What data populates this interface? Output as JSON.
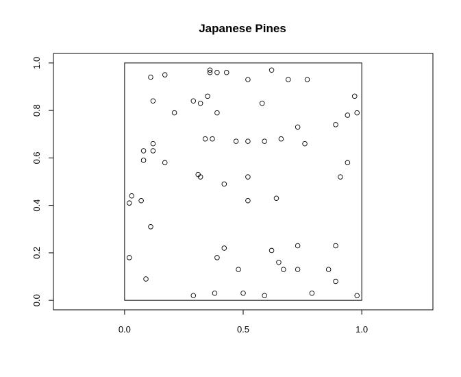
{
  "chart_data": {
    "type": "scatter",
    "title": "Japanese Pines",
    "xlabel": "",
    "ylabel": "",
    "xlim": [
      -0.3,
      1.3
    ],
    "ylim": [
      -0.04,
      1.04
    ],
    "observation_window": {
      "x": [
        0,
        1
      ],
      "y": [
        0,
        1
      ]
    },
    "x_ticks": [
      {
        "value": 0.0,
        "label": "0.0"
      },
      {
        "value": 0.5,
        "label": "0.5"
      },
      {
        "value": 1.0,
        "label": "1.0"
      }
    ],
    "y_ticks": [
      {
        "value": 0.0,
        "label": "0.0"
      },
      {
        "value": 0.2,
        "label": "0.2"
      },
      {
        "value": 0.4,
        "label": "0.4"
      },
      {
        "value": 0.6,
        "label": "0.6"
      },
      {
        "value": 0.8,
        "label": "0.8"
      },
      {
        "value": 1.0,
        "label": "1.0"
      }
    ],
    "grid": false,
    "marker": "open-circle",
    "points": [
      [
        0.09,
        0.09
      ],
      [
        0.29,
        0.02
      ],
      [
        0.38,
        0.03
      ],
      [
        0.5,
        0.03
      ],
      [
        0.59,
        0.02
      ],
      [
        0.79,
        0.03
      ],
      [
        0.98,
        0.02
      ],
      [
        0.02,
        0.18
      ],
      [
        0.39,
        0.18
      ],
      [
        0.42,
        0.22
      ],
      [
        0.48,
        0.13
      ],
      [
        0.62,
        0.21
      ],
      [
        0.65,
        0.16
      ],
      [
        0.67,
        0.13
      ],
      [
        0.73,
        0.13
      ],
      [
        0.73,
        0.23
      ],
      [
        0.86,
        0.13
      ],
      [
        0.89,
        0.08
      ],
      [
        0.89,
        0.23
      ],
      [
        0.11,
        0.31
      ],
      [
        0.02,
        0.41
      ],
      [
        0.03,
        0.44
      ],
      [
        0.07,
        0.42
      ],
      [
        0.31,
        0.53
      ],
      [
        0.32,
        0.52
      ],
      [
        0.42,
        0.49
      ],
      [
        0.52,
        0.42
      ],
      [
        0.52,
        0.52
      ],
      [
        0.64,
        0.43
      ],
      [
        0.91,
        0.52
      ],
      [
        0.08,
        0.59
      ],
      [
        0.08,
        0.63
      ],
      [
        0.12,
        0.63
      ],
      [
        0.12,
        0.66
      ],
      [
        0.17,
        0.58
      ],
      [
        0.34,
        0.68
      ],
      [
        0.37,
        0.68
      ],
      [
        0.47,
        0.67
      ],
      [
        0.52,
        0.67
      ],
      [
        0.59,
        0.67
      ],
      [
        0.66,
        0.68
      ],
      [
        0.73,
        0.73
      ],
      [
        0.76,
        0.66
      ],
      [
        0.89,
        0.74
      ],
      [
        0.94,
        0.58
      ],
      [
        0.12,
        0.84
      ],
      [
        0.21,
        0.79
      ],
      [
        0.29,
        0.84
      ],
      [
        0.32,
        0.83
      ],
      [
        0.35,
        0.86
      ],
      [
        0.39,
        0.79
      ],
      [
        0.58,
        0.83
      ],
      [
        0.94,
        0.78
      ],
      [
        0.97,
        0.86
      ],
      [
        0.98,
        0.79
      ],
      [
        0.11,
        0.94
      ],
      [
        0.17,
        0.95
      ],
      [
        0.36,
        0.96
      ],
      [
        0.36,
        0.97
      ],
      [
        0.39,
        0.96
      ],
      [
        0.43,
        0.96
      ],
      [
        0.52,
        0.93
      ],
      [
        0.62,
        0.97
      ],
      [
        0.69,
        0.93
      ],
      [
        0.77,
        0.93
      ]
    ]
  }
}
